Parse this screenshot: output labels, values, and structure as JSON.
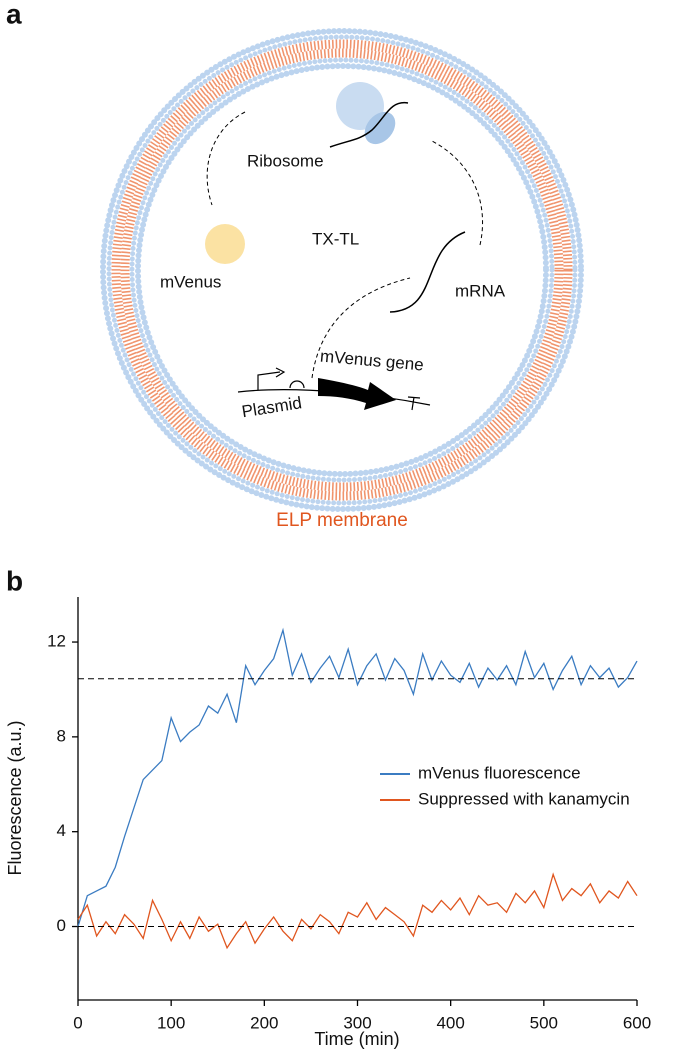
{
  "figure_a": {
    "panel_label": "a",
    "ribosome": "Ribosome",
    "protein": "mVenus",
    "system": "TX-TL",
    "mrna": "mRNA",
    "gene": "mVenus gene",
    "plasmid": "Plasmid",
    "membrane": "ELP membrane"
  },
  "chart_data": {
    "type": "line",
    "panel_label": "b",
    "x_label": "Time (min)",
    "y_label": "Fluorescence (a.u.)",
    "x": [
      0,
      10,
      20,
      30,
      40,
      50,
      60,
      70,
      80,
      90,
      100,
      110,
      120,
      130,
      140,
      150,
      160,
      170,
      180,
      190,
      200,
      210,
      220,
      230,
      240,
      250,
      260,
      270,
      280,
      290,
      300,
      310,
      320,
      330,
      340,
      350,
      360,
      370,
      380,
      390,
      400,
      410,
      420,
      430,
      440,
      450,
      460,
      470,
      480,
      490,
      500,
      510,
      520,
      530,
      540,
      550,
      560,
      570,
      580,
      590,
      600
    ],
    "series": [
      {
        "name": "mVenus fluorescence",
        "color": "#3b7cc2",
        "values": [
          0,
          1.3,
          1.5,
          1.7,
          2.5,
          3.8,
          5.0,
          6.2,
          6.6,
          7.0,
          8.8,
          7.8,
          8.2,
          8.5,
          9.3,
          9.0,
          9.8,
          8.6,
          11.0,
          10.2,
          10.8,
          11.3,
          12.5,
          10.6,
          11.5,
          10.3,
          10.9,
          11.4,
          10.5,
          11.7,
          10.2,
          11.0,
          11.5,
          10.4,
          11.3,
          10.8,
          9.8,
          11.5,
          10.4,
          11.2,
          10.6,
          10.3,
          11.1,
          10.1,
          10.9,
          10.4,
          11.0,
          10.2,
          11.6,
          10.5,
          11.1,
          10.0,
          10.8,
          11.4,
          10.2,
          11.0,
          10.5,
          10.9,
          10.1,
          10.5,
          11.2
        ]
      },
      {
        "name": "Suppressed with kanamycin",
        "color": "#e0561f",
        "values": [
          0.3,
          0.9,
          -0.4,
          0.2,
          -0.3,
          0.5,
          0.1,
          -0.5,
          1.1,
          0.3,
          -0.6,
          0.2,
          -0.5,
          0.4,
          -0.2,
          0.1,
          -0.9,
          -0.3,
          0.2,
          -0.7,
          -0.1,
          0.4,
          -0.2,
          -0.6,
          0.3,
          -0.1,
          0.5,
          0.2,
          -0.3,
          0.6,
          0.4,
          1.0,
          0.3,
          0.8,
          0.5,
          0.2,
          -0.4,
          0.9,
          0.6,
          1.1,
          0.7,
          1.2,
          0.5,
          1.3,
          0.9,
          1.0,
          0.6,
          1.4,
          1.0,
          1.5,
          0.8,
          2.2,
          1.1,
          1.6,
          1.3,
          1.8,
          1.0,
          1.5,
          1.2,
          1.9,
          1.3
        ]
      }
    ],
    "hlines": [
      10.45,
      0
    ],
    "xlim": [
      0,
      600
    ],
    "xticks": [
      0,
      100,
      200,
      300,
      400,
      500,
      600
    ],
    "ylim": [
      -3.1,
      13.9
    ],
    "yticks": [
      0,
      4,
      8,
      12
    ],
    "legend": "right"
  }
}
